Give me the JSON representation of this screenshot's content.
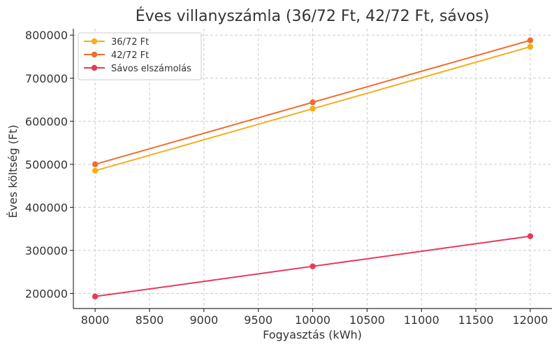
{
  "chart_data": {
    "type": "line",
    "title": "Éves villanyszámla (36/72 Ft, 42/72 Ft, sávos)",
    "xlabel": "Fogyasztás (kWh)",
    "ylabel": "Éves költség (Ft)",
    "x": [
      8000,
      10000,
      12000
    ],
    "xlim": [
      7800,
      12200
    ],
    "ylim": [
      165000,
      815000
    ],
    "xticks": [
      8000,
      8500,
      9000,
      9500,
      10000,
      10500,
      11000,
      11500,
      12000
    ],
    "yticks": [
      200000,
      300000,
      400000,
      500000,
      600000,
      700000,
      800000
    ],
    "grid": true,
    "legend_position": "top-left",
    "series": [
      {
        "name": "36/72 Ft",
        "color": "#F4AE1B",
        "values": [
          485000,
          629000,
          773000
        ]
      },
      {
        "name": "42/72 Ft",
        "color": "#EE6D2F",
        "values": [
          500000,
          644000,
          788000
        ]
      },
      {
        "name": "Sávos elszámolás",
        "color": "#E8395A",
        "values": [
          193000,
          263000,
          333000
        ]
      }
    ]
  }
}
